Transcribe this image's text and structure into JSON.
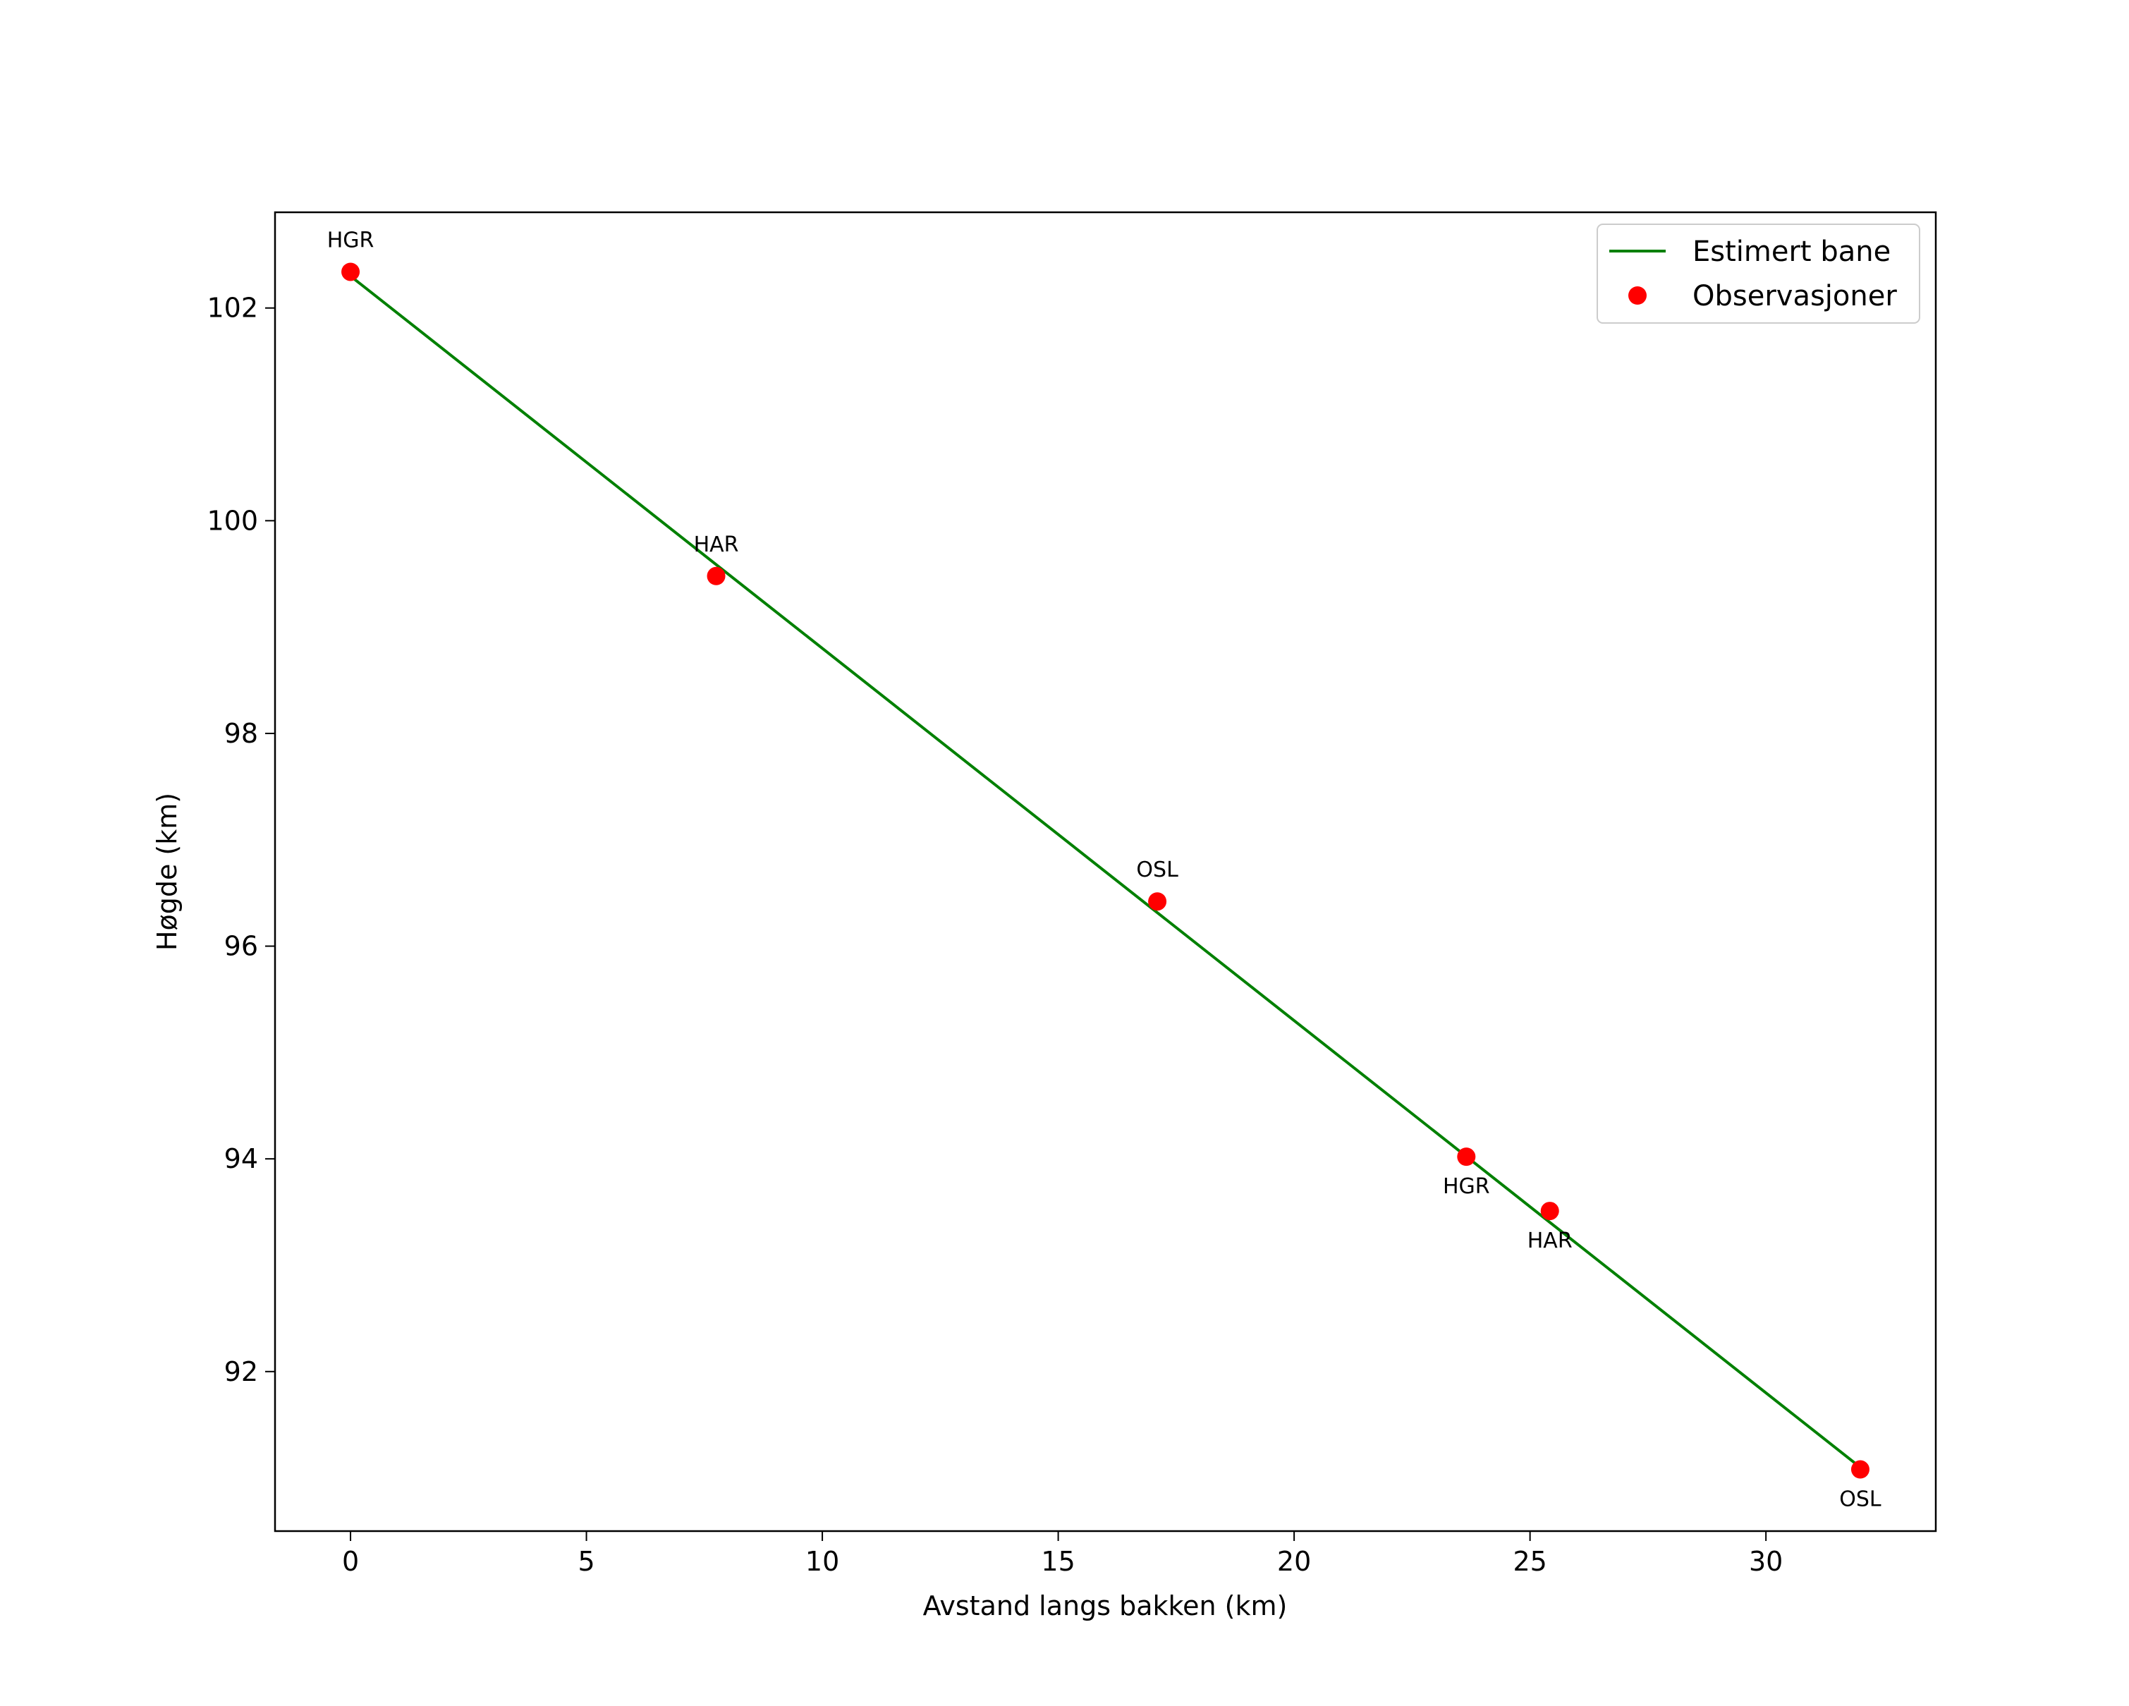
{
  "chart_data": {
    "type": "line",
    "title": "",
    "xlabel": "Avstand langs bakken (km)",
    "ylabel": "Høgde (km)",
    "xlim": [
      -1.6,
      33.6
    ],
    "ylim": [
      90.5,
      102.9
    ],
    "xticks": [
      0,
      5,
      10,
      15,
      20,
      25,
      30
    ],
    "yticks": [
      92,
      94,
      96,
      98,
      100,
      102
    ],
    "grid": false,
    "legend_position": "upper right",
    "series": [
      {
        "name": "Estimert bane",
        "kind": "line",
        "color": "#008000",
        "x": [
          0,
          32.0
        ],
        "y": [
          102.3,
          91.1
        ]
      },
      {
        "name": "Observasjoner",
        "kind": "scatter",
        "color": "#ff0000",
        "x": [
          0.0,
          7.75,
          17.1,
          23.65,
          25.42,
          32.0
        ],
        "y": [
          102.34,
          99.48,
          96.42,
          94.02,
          93.51,
          91.08
        ],
        "labels": [
          "HGR",
          "HAR",
          "OSL",
          "HGR",
          "HAR",
          "OSL"
        ],
        "label_position": [
          "above",
          "above",
          "above",
          "below",
          "below",
          "below"
        ]
      }
    ]
  },
  "legend": {
    "line_label": "Estimert bane",
    "marker_label": "Observasjoner"
  }
}
